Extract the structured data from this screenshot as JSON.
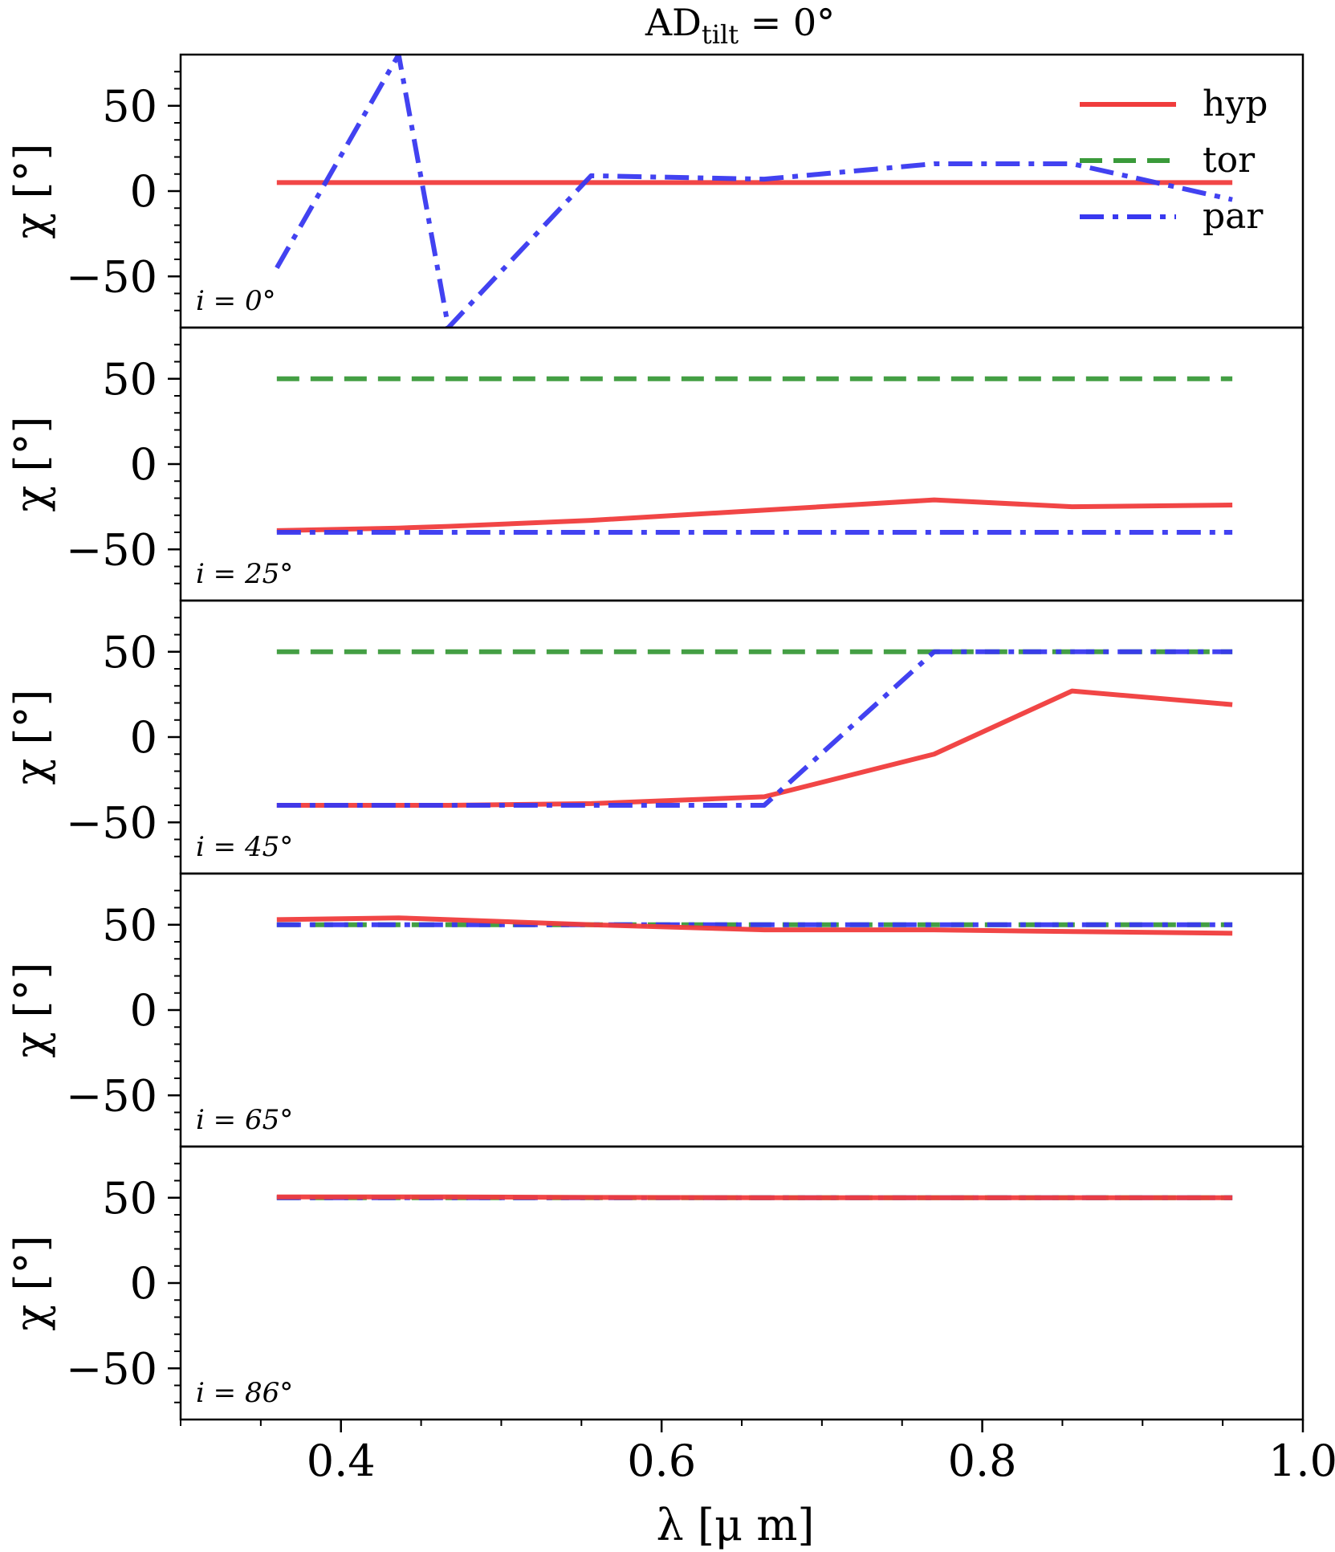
{
  "chart_data": {
    "type": "line",
    "title": "AD_tilt = 0°",
    "title_parts": {
      "main": "AD",
      "sub": "tilt",
      "rest": " = 0°"
    },
    "xlabel": "λ [μ m]",
    "ylabel": "χ [°]",
    "xlim": [
      0.3,
      1.0
    ],
    "ylim": [
      -80,
      80
    ],
    "xticks": [
      0.4,
      0.6,
      0.8,
      1.0
    ],
    "xtick_labels": [
      "0.4",
      "0.6",
      "0.8",
      "1.0"
    ],
    "yticks": [
      50,
      0,
      -50
    ],
    "ytick_labels": [
      "50",
      "0",
      "−50"
    ],
    "grid": false,
    "legend_position": "top-right",
    "legend": [
      {
        "name": "hyp",
        "color": "#f03c3c",
        "style": "solid"
      },
      {
        "name": "tor",
        "color": "#3a9a3a",
        "style": "dashed"
      },
      {
        "name": "par",
        "color": "#3838f0",
        "style": "dashdot"
      }
    ],
    "x": [
      0.36,
      0.436,
      0.467,
      0.556,
      0.664,
      0.77,
      0.856,
      0.956
    ],
    "panels": [
      {
        "label": "i = 0°",
        "series": [
          {
            "name": "hyp",
            "values": [
              5,
              5,
              5,
              5,
              5,
              5,
              5,
              5
            ]
          },
          {
            "name": "par",
            "values": [
              -45,
              80,
              -80,
              9,
              7,
              16,
              16,
              -5
            ]
          }
        ]
      },
      {
        "label": "i = 25°",
        "series": [
          {
            "name": "tor",
            "values": [
              50,
              50,
              50,
              50,
              50,
              50,
              50,
              50
            ]
          },
          {
            "name": "hyp",
            "values": [
              -39,
              -37.5,
              -36.5,
              -33,
              -27,
              -21,
              -25,
              -24
            ]
          },
          {
            "name": "par",
            "values": [
              -40,
              -40,
              -40,
              -40,
              -40,
              -40,
              -40,
              -40
            ]
          }
        ]
      },
      {
        "label": "i = 45°",
        "series": [
          {
            "name": "tor",
            "values": [
              50,
              50,
              50,
              50,
              50,
              50,
              50,
              50
            ]
          },
          {
            "name": "hyp",
            "values": [
              -40,
              -40,
              -40,
              -39,
              -35,
              -10,
              27,
              19
            ]
          },
          {
            "name": "par",
            "values": [
              -40,
              -40,
              -40,
              -40,
              -40,
              50,
              50,
              50
            ]
          }
        ]
      },
      {
        "label": "i = 65°",
        "series": [
          {
            "name": "tor",
            "values": [
              50,
              50,
              50,
              50,
              50,
              50,
              50,
              50
            ]
          },
          {
            "name": "par",
            "values": [
              50,
              50,
              50,
              50,
              50,
              50,
              50,
              50
            ]
          },
          {
            "name": "hyp",
            "values": [
              53,
              54,
              53,
              50,
              47,
              47,
              46,
              45
            ]
          }
        ]
      },
      {
        "label": "i = 86°",
        "series": [
          {
            "name": "tor",
            "values": [
              50,
              50,
              50,
              50,
              50,
              50,
              50,
              50
            ]
          },
          {
            "name": "par",
            "values": [
              50,
              50,
              50,
              50,
              50,
              50,
              50,
              50
            ]
          },
          {
            "name": "hyp",
            "values": [
              50.5,
              50.5,
              50.5,
              50.2,
              50,
              50,
              50,
              50
            ]
          }
        ]
      }
    ]
  }
}
